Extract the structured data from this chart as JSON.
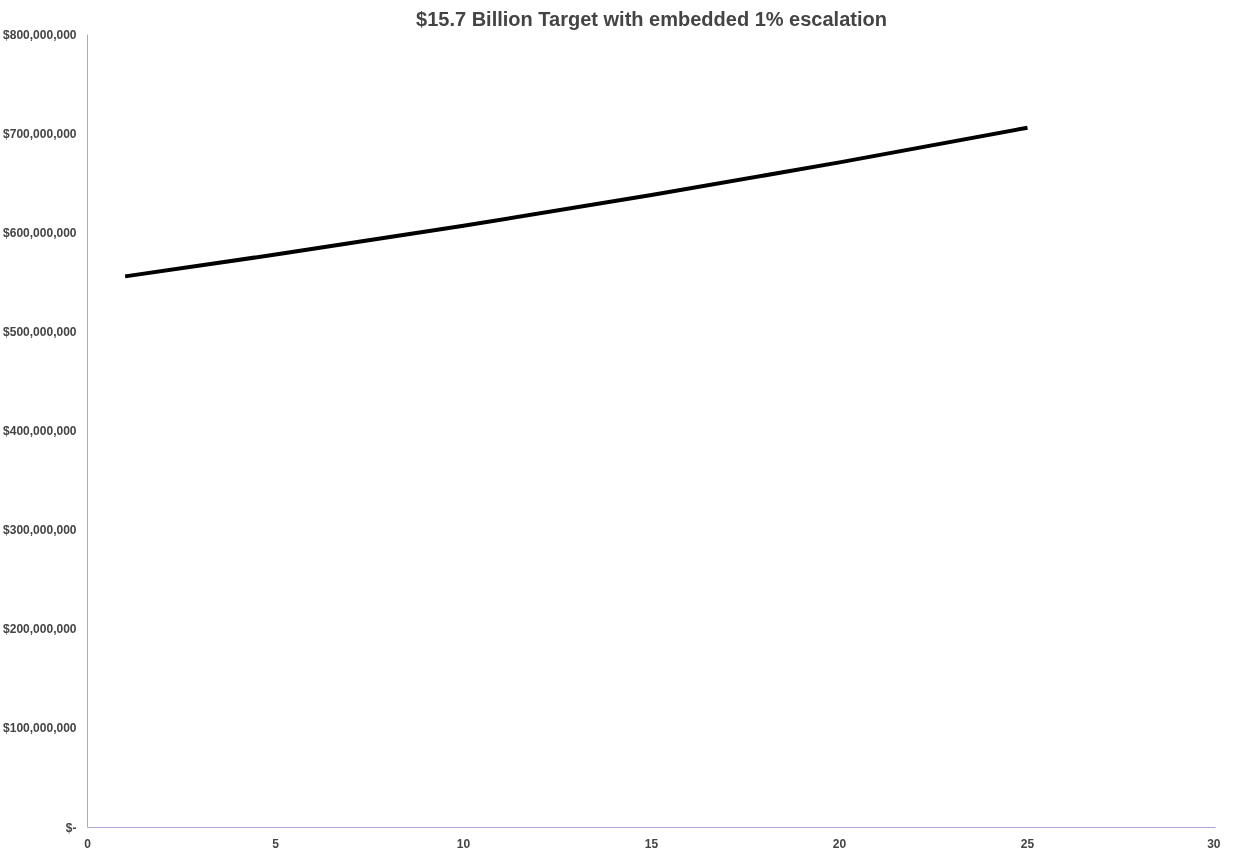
{
  "chart_data": {
    "type": "line",
    "title": "$15.7 Billion Target with embedded 1% escalation",
    "x": [
      1,
      5,
      10,
      15,
      20,
      25
    ],
    "series": [
      {
        "color": "#000000",
        "values": [
          556000000,
          578000000,
          607000000,
          638000000,
          671000000,
          706000000
        ]
      }
    ],
    "xlim": [
      0,
      30
    ],
    "xticks": [
      0,
      5,
      10,
      15,
      20,
      25,
      30
    ],
    "ylim": [
      0,
      800000000
    ],
    "yticks": [
      {
        "value": 0,
        "label": "$-"
      },
      {
        "value": 100000000,
        "label": "$100,000,000"
      },
      {
        "value": 200000000,
        "label": "$200,000,000"
      },
      {
        "value": 300000000,
        "label": "$300,000,000"
      },
      {
        "value": 400000000,
        "label": "$400,000,000"
      },
      {
        "value": 500000000,
        "label": "$500,000,000"
      },
      {
        "value": 600000000,
        "label": "$600,000,000"
      },
      {
        "value": 700000000,
        "label": "$700,000,000"
      },
      {
        "value": 800000000,
        "label": "$800,000,000"
      }
    ],
    "grid": false,
    "marker": "none",
    "line_style": "solid"
  }
}
